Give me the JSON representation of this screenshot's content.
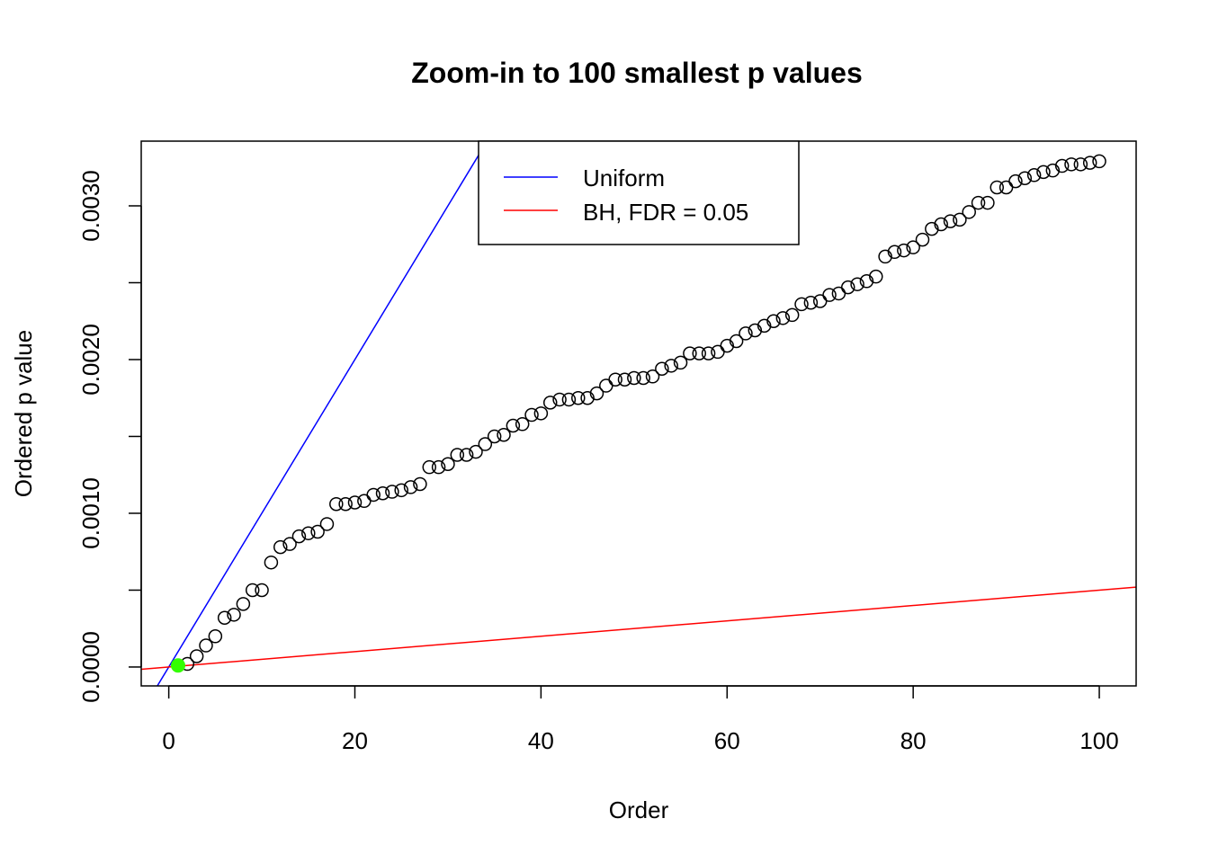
{
  "chart_data": {
    "type": "scatter",
    "title": "Zoom-in to 100 smallest p values",
    "xlabel": "Order",
    "ylabel": "Ordered p value",
    "xlim": [
      -2.96,
      103.96
    ],
    "ylim": [
      -0.000123,
      0.003421
    ],
    "x_ticks": [
      0,
      20,
      40,
      60,
      80,
      100
    ],
    "x_tick_labels": [
      "0",
      "20",
      "40",
      "60",
      "80",
      "100"
    ],
    "y_ticks": [
      0,
      0.0005,
      0.001,
      0.0015,
      0.002,
      0.0025,
      0.003
    ],
    "y_tick_labels": [
      "0.0000",
      "",
      "0.0010",
      "",
      "0.0020",
      "",
      "0.0030"
    ],
    "grid": false,
    "legend": {
      "placement": "top-center",
      "entries": [
        {
          "label": "Uniform",
          "color": "#0000ff"
        },
        {
          "label": "BH, FDR = 0.05",
          "color": "#ff0000"
        }
      ]
    },
    "lines": [
      {
        "name": "Uniform",
        "intercept": 0,
        "slope": 0.0001,
        "color": "#0000ff"
      },
      {
        "name": "BH, FDR = 0.05",
        "intercept": 0,
        "slope": 5e-06,
        "color": "#ff0000"
      }
    ],
    "highlighted_points": [
      {
        "x": 1,
        "color": "#33ff00"
      }
    ],
    "x": [
      1,
      2,
      3,
      4,
      5,
      6,
      7,
      8,
      9,
      10,
      11,
      12,
      13,
      14,
      15,
      16,
      17,
      18,
      19,
      20,
      21,
      22,
      23,
      24,
      25,
      26,
      27,
      28,
      29,
      30,
      31,
      32,
      33,
      34,
      35,
      36,
      37,
      38,
      39,
      40,
      41,
      42,
      43,
      44,
      45,
      46,
      47,
      48,
      49,
      50,
      51,
      52,
      53,
      54,
      55,
      56,
      57,
      58,
      59,
      60,
      61,
      62,
      63,
      64,
      65,
      66,
      67,
      68,
      69,
      70,
      71,
      72,
      73,
      74,
      75,
      76,
      77,
      78,
      79,
      80,
      81,
      82,
      83,
      84,
      85,
      86,
      87,
      88,
      89,
      90,
      91,
      92,
      93,
      94,
      95,
      96,
      97,
      98,
      99,
      100
    ],
    "y": [
      1e-05,
      2e-05,
      7e-05,
      0.00014,
      0.0002,
      0.00032,
      0.00034,
      0.00041,
      0.0005,
      0.0005,
      0.00068,
      0.00078,
      0.0008,
      0.00085,
      0.00087,
      0.00088,
      0.00093,
      0.00106,
      0.00106,
      0.00107,
      0.00108,
      0.00112,
      0.00113,
      0.00114,
      0.00115,
      0.00117,
      0.00119,
      0.0013,
      0.0013,
      0.00132,
      0.00138,
      0.00138,
      0.0014,
      0.00145,
      0.0015,
      0.00151,
      0.00157,
      0.00158,
      0.00164,
      0.00165,
      0.00172,
      0.00174,
      0.00174,
      0.00175,
      0.00175,
      0.00178,
      0.00183,
      0.00187,
      0.00187,
      0.00188,
      0.00188,
      0.00189,
      0.00194,
      0.00196,
      0.00198,
      0.00204,
      0.00204,
      0.00204,
      0.00205,
      0.00209,
      0.00212,
      0.00217,
      0.00219,
      0.00222,
      0.00225,
      0.00227,
      0.00229,
      0.00236,
      0.00237,
      0.00238,
      0.00242,
      0.00243,
      0.00247,
      0.00249,
      0.00251,
      0.00254,
      0.00267,
      0.0027,
      0.00271,
      0.00273,
      0.00278,
      0.00285,
      0.00288,
      0.0029,
      0.00291,
      0.00296,
      0.00302,
      0.00302,
      0.00312,
      0.00312,
      0.00316,
      0.00318,
      0.0032,
      0.00322,
      0.00323,
      0.00326,
      0.00327,
      0.00327,
      0.00328,
      0.00329
    ]
  }
}
